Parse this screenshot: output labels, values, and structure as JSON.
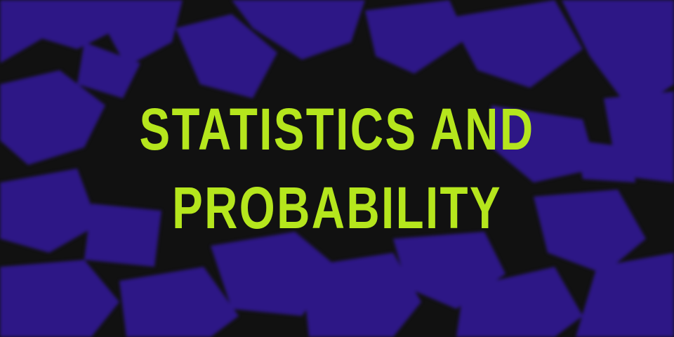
{
  "banner": {
    "title_line_1": "STATISTICS AND",
    "title_line_2": "PROBABILITY"
  },
  "colors": {
    "background": "#111111",
    "shapes": "#2d1786",
    "title": "#b5e61d"
  }
}
